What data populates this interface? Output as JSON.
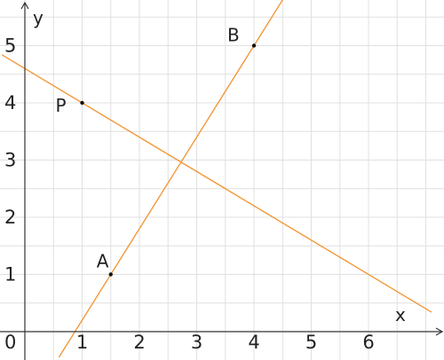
{
  "chart_data": {
    "type": "line",
    "xlabel": "x",
    "ylabel": "y",
    "origin_label": "0",
    "xlim": [
      -0.4,
      7.1
    ],
    "ylim": [
      -0.45,
      5.9
    ],
    "grid": true,
    "grid_step": 0.5,
    "x_ticks": [
      1,
      2,
      3,
      4,
      5,
      6
    ],
    "y_ticks": [
      1,
      2,
      3,
      4,
      5
    ],
    "series": [
      {
        "points": [
          [
            1.5,
            1
          ],
          [
            4,
            5
          ]
        ],
        "extend": true,
        "color": "#f4973a"
      },
      {
        "points": [
          [
            1,
            4
          ],
          [
            6,
            1
          ]
        ],
        "extend": true,
        "color": "#f4973a"
      }
    ],
    "labeled_points": [
      {
        "label": "A",
        "x": 1.5,
        "y": 1
      },
      {
        "label": "B",
        "x": 4,
        "y": 5
      },
      {
        "label": "P",
        "x": 1,
        "y": 4
      }
    ]
  }
}
